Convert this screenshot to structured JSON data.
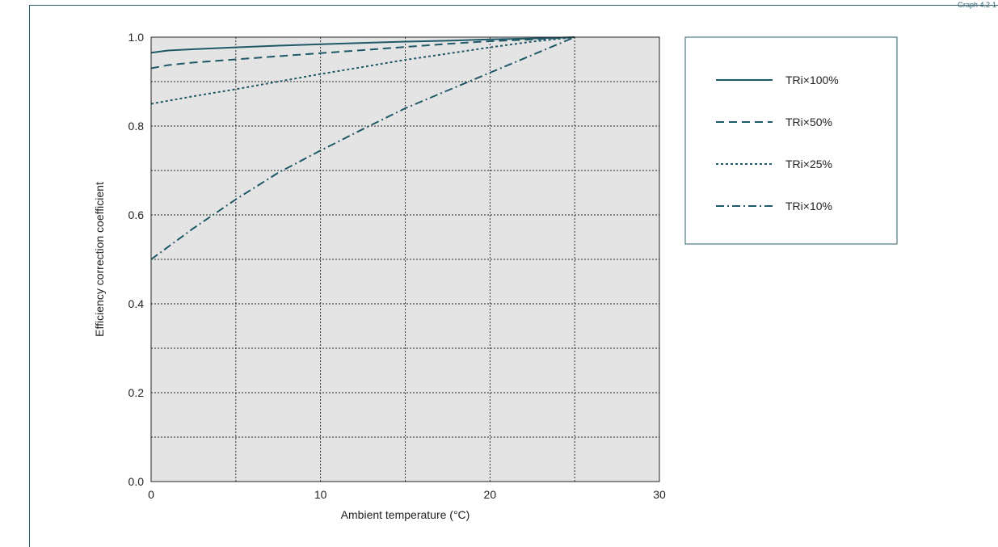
{
  "header": {
    "left_text": "",
    "right_text": "Graph 4.2-1"
  },
  "chart_data": {
    "type": "line",
    "title": "",
    "xlabel": "Ambient temperature (°C)",
    "ylabel": "Efficiency correction coefficient",
    "xlim": [
      0,
      30
    ],
    "ylim": [
      0.0,
      1.0
    ],
    "x_ticks": [
      0,
      10,
      20,
      30
    ],
    "x_tick_labels": [
      "0",
      "10",
      "20",
      "30"
    ],
    "x_grid": [
      5,
      10,
      15,
      20,
      25
    ],
    "y_ticks": [
      0.0,
      0.2,
      0.4,
      0.6,
      0.8,
      1.0
    ],
    "y_tick_labels": [
      "0.0",
      "0.2",
      "0.4",
      "0.6",
      "0.8",
      "1.0"
    ],
    "y_grid": [
      0.1,
      0.2,
      0.3,
      0.4,
      0.5,
      0.6,
      0.7,
      0.8,
      0.9
    ],
    "grid": true,
    "plot_background": "#e4e4e4",
    "line_color": "#1f5866",
    "legend_position": "right",
    "series": [
      {
        "name": "TRi×100%",
        "dash": "solid",
        "x": [
          0,
          1,
          2.5,
          5,
          7.5,
          10,
          12.5,
          15,
          17.5,
          20,
          22.5,
          25
        ],
        "y": [
          0.965,
          0.97,
          0.973,
          0.977,
          0.981,
          0.984,
          0.987,
          0.99,
          0.992,
          0.995,
          0.997,
          1.0
        ]
      },
      {
        "name": "TRi×50%",
        "dash": "dashed",
        "x": [
          0,
          1,
          2.5,
          5,
          7.5,
          10,
          12.5,
          15,
          17.5,
          20,
          22.5,
          25
        ],
        "y": [
          0.93,
          0.937,
          0.943,
          0.95,
          0.957,
          0.964,
          0.971,
          0.978,
          0.985,
          0.991,
          0.995,
          1.0
        ]
      },
      {
        "name": "TRi×25%",
        "dash": "dotted",
        "x": [
          0,
          2.5,
          5,
          7.5,
          10,
          12.5,
          15,
          17.5,
          20,
          22.5,
          25
        ],
        "y": [
          0.85,
          0.867,
          0.883,
          0.9,
          0.917,
          0.933,
          0.949,
          0.963,
          0.977,
          0.99,
          1.0
        ]
      },
      {
        "name": "TRi×10%",
        "dash": "dashdot",
        "x": [
          0,
          2.5,
          5,
          7.5,
          10,
          12.5,
          15,
          17.5,
          20,
          22.5,
          25
        ],
        "y": [
          0.5,
          0.57,
          0.635,
          0.695,
          0.745,
          0.793,
          0.84,
          0.88,
          0.92,
          0.96,
          1.0
        ]
      }
    ]
  }
}
